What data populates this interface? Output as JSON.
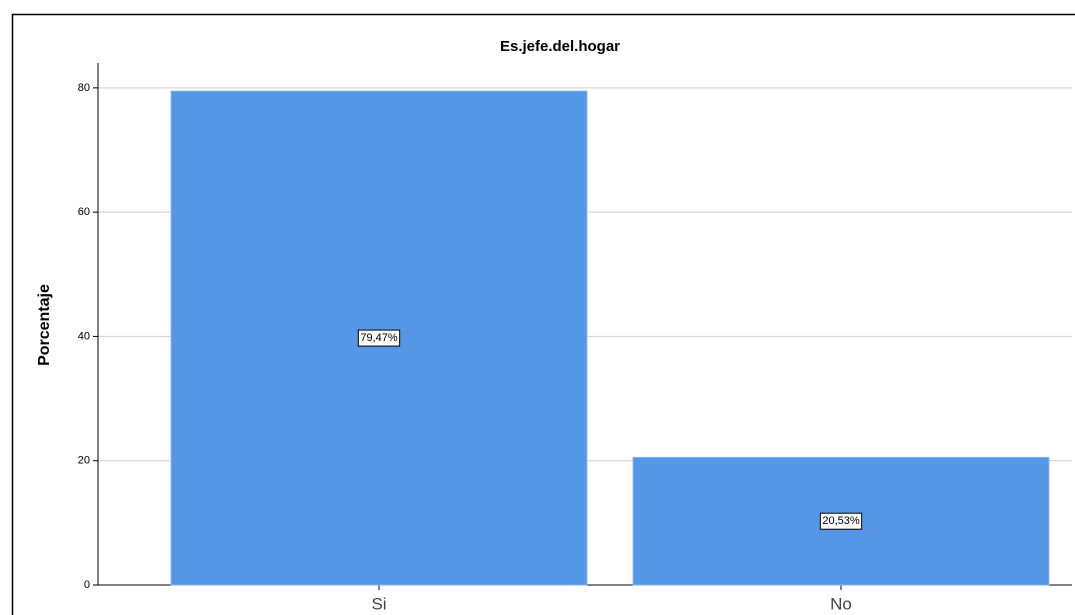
{
  "chart_data": {
    "type": "bar",
    "title": "Es.jefe.del.hogar",
    "y_label": "Porcentaje",
    "categories": [
      "Si",
      "No"
    ],
    "values": [
      79.47,
      20.53
    ],
    "value_labels": [
      "79,47%",
      "20,53%"
    ],
    "color": "#5596e6",
    "ylim": [
      0,
      84
    ],
    "yticks": [
      0,
      20,
      40,
      60,
      80
    ],
    "grid": true
  }
}
